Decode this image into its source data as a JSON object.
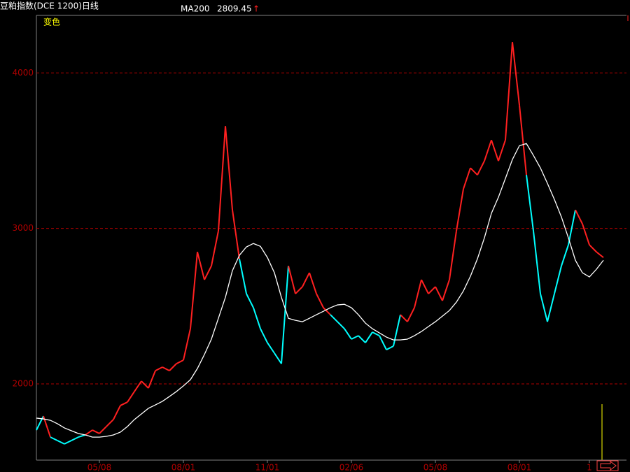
{
  "chart_data": {
    "type": "line",
    "title": "豆粕指数(DCE 1200)日线",
    "annotation": "变色",
    "categories": [
      null,
      null,
      null,
      null,
      null,
      null,
      null,
      null,
      null,
      "05/08",
      null,
      null,
      null,
      null,
      null,
      null,
      null,
      null,
      null,
      null,
      null,
      "08/01",
      null,
      null,
      null,
      null,
      null,
      null,
      null,
      null,
      null,
      null,
      null,
      "11/01",
      null,
      null,
      null,
      null,
      null,
      null,
      null,
      null,
      null,
      null,
      null,
      "02/06",
      null,
      null,
      null,
      null,
      null,
      null,
      null,
      null,
      null,
      null,
      null,
      "05/08",
      null,
      null,
      null,
      null,
      null,
      null,
      null,
      null,
      null,
      null,
      null,
      "08/01",
      null,
      null,
      null,
      null,
      null,
      null,
      null,
      null,
      null,
      "1",
      null,
      null
    ],
    "series": [
      {
        "up_color": "#ff2020",
        "down_color": "#00ffff",
        "values": [
          1703,
          1793,
          1658,
          1636,
          1614,
          1636,
          1658,
          1672,
          1703,
          1681,
          1726,
          1771,
          1861,
          1883,
          1951,
          2018,
          1973,
          2085,
          2108,
          2085,
          2130,
          2153,
          2355,
          2849,
          2670,
          2759,
          2984,
          3658,
          3119,
          2804,
          2580,
          2490,
          2355,
          2265,
          2198,
          2130,
          2759,
          2580,
          2625,
          2715,
          2580,
          2490,
          2445,
          2400,
          2355,
          2288,
          2310,
          2265,
          2333,
          2310,
          2220,
          2243,
          2445,
          2400,
          2490,
          2670,
          2580,
          2625,
          2535,
          2670,
          2984,
          3254,
          3389,
          3344,
          3434,
          3568,
          3434,
          3568,
          4198,
          3793,
          3344,
          2984,
          2580,
          2400,
          2580,
          2759,
          2894,
          3119,
          3029,
          2894,
          2849,
          2813
        ]
      },
      {
        "name": "MA200",
        "color": "#ffffff",
        "current": 2809.45,
        "arrow": "↑",
        "values": [
          1780,
          1775,
          1766,
          1744,
          1717,
          1699,
          1681,
          1672,
          1658,
          1658,
          1663,
          1672,
          1690,
          1726,
          1771,
          1807,
          1843,
          1865,
          1888,
          1919,
          1951,
          1987,
          2027,
          2099,
          2189,
          2288,
          2422,
          2557,
          2728,
          2827,
          2881,
          2903,
          2885,
          2813,
          2715,
          2557,
          2422,
          2409,
          2400,
          2422,
          2445,
          2467,
          2490,
          2508,
          2512,
          2490,
          2445,
          2391,
          2355,
          2328,
          2301,
          2283,
          2283,
          2288,
          2310,
          2337,
          2369,
          2400,
          2436,
          2472,
          2526,
          2598,
          2692,
          2804,
          2939,
          3097,
          3200,
          3321,
          3443,
          3532,
          3546,
          3470,
          3389,
          3290,
          3186,
          3074,
          2939,
          2795,
          2715,
          2688,
          2737,
          2795
        ]
      }
    ],
    "ylim": [
      1510,
      4370
    ],
    "yticks": [
      2000,
      3000,
      4000
    ],
    "grid": true,
    "grid_color": "#b00000",
    "axis_color": "#808080"
  }
}
